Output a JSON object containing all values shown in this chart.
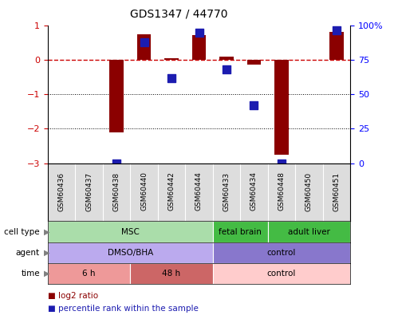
{
  "title": "GDS1347 / 44770",
  "samples": [
    "GSM60436",
    "GSM60437",
    "GSM60438",
    "GSM60440",
    "GSM60442",
    "GSM60444",
    "GSM60433",
    "GSM60434",
    "GSM60448",
    "GSM60450",
    "GSM60451"
  ],
  "log2_ratio": [
    0.0,
    0.0,
    -2.1,
    0.75,
    0.05,
    0.72,
    0.1,
    -0.12,
    -2.75,
    0.0,
    0.82
  ],
  "percentile_rank": [
    null,
    null,
    0.0,
    0.88,
    0.62,
    0.95,
    0.68,
    0.42,
    0.0,
    null,
    0.97
  ],
  "ylim_left": [
    -3,
    1
  ],
  "ylim_right": [
    0,
    100
  ],
  "left_ticks": [
    1,
    0,
    -1,
    -2,
    -3
  ],
  "right_ticks": [
    100,
    75,
    50,
    25,
    0
  ],
  "bar_color": "#8B0000",
  "dot_color": "#1C1CB0",
  "dashed_color": "#CC0000",
  "cell_type_regions": [
    {
      "label": "MSC",
      "start": 0,
      "end": 5,
      "color": "#AADDAA",
      "text_color": "black"
    },
    {
      "label": "fetal brain",
      "start": 6,
      "end": 7,
      "color": "#44BB44",
      "text_color": "black"
    },
    {
      "label": "adult liver",
      "start": 8,
      "end": 10,
      "color": "#44BB44",
      "text_color": "black"
    }
  ],
  "agent_regions": [
    {
      "label": "DMSO/BHA",
      "start": 0,
      "end": 5,
      "color": "#BBAAEE",
      "text_color": "black"
    },
    {
      "label": "control",
      "start": 6,
      "end": 10,
      "color": "#8877CC",
      "text_color": "black"
    }
  ],
  "time_regions": [
    {
      "label": "6 h",
      "start": 0,
      "end": 2,
      "color": "#EE9999",
      "text_color": "black"
    },
    {
      "label": "48 h",
      "start": 3,
      "end": 5,
      "color": "#CC6666",
      "text_color": "black"
    },
    {
      "label": "control",
      "start": 6,
      "end": 10,
      "color": "#FFCCCC",
      "text_color": "black"
    }
  ],
  "legend_items": [
    {
      "label": "log2 ratio",
      "color": "#8B0000"
    },
    {
      "label": "percentile rank within the sample",
      "color": "#1C1CB0"
    }
  ],
  "row_labels": [
    "cell type",
    "agent",
    "time"
  ],
  "background_color": "#FFFFFF",
  "bar_width": 0.5,
  "xlabel_bg": "#DDDDDD"
}
